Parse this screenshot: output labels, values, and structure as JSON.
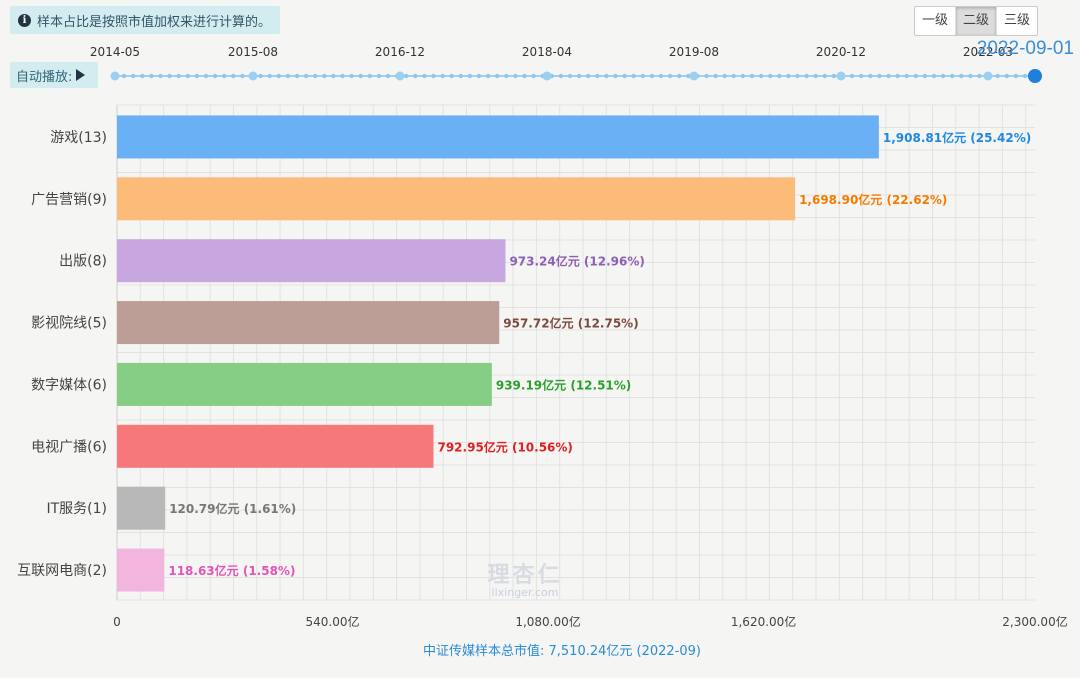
{
  "notice": {
    "icon": "info-icon",
    "text": "样本占比是按照市值加权来进行计算的。"
  },
  "levels": [
    "一级",
    "二级",
    "三级"
  ],
  "active_level": 1,
  "autoplay_label": "自动播放:",
  "timeline": {
    "labels": [
      "2014-05",
      "2015-08",
      "2016-12",
      "2018-04",
      "2019-08",
      "2020-12",
      "2022-03"
    ],
    "current": "2022-09-01"
  },
  "watermark": {
    "cn": "理杏仁",
    "en": "lixinger.com"
  },
  "chart_data": {
    "type": "bar",
    "orientation": "horizontal",
    "categories": [
      "游戏(13)",
      "广告营销(9)",
      "出版(8)",
      "影视院线(5)",
      "数字媒体(6)",
      "电视广播(6)",
      "IT服务(1)",
      "互联网电商(2)"
    ],
    "values": [
      1908.81,
      1698.9,
      973.24,
      957.72,
      939.19,
      792.95,
      120.79,
      118.63
    ],
    "labels": [
      "1,908.81亿元 (25.42%)",
      "1,698.90亿元 (22.62%)",
      "973.24亿元 (12.96%)",
      "957.72亿元 (12.75%)",
      "939.19亿元 (12.51%)",
      "792.95亿元 (10.56%)",
      "120.79亿元 (1.61%)",
      "118.63亿元 (1.58%)"
    ],
    "colors": [
      "#6ab0f5",
      "#fdbb7a",
      "#c8a7e0",
      "#bc9e97",
      "#86cd86",
      "#f7787a",
      "#b8b8b8",
      "#f1b5de"
    ],
    "label_colors": [
      "#1e88e5",
      "#f57c00",
      "#8e5fb6",
      "#7d4a3e",
      "#2aa02a",
      "#e02020",
      "#777777",
      "#e255b8"
    ],
    "xlim": [
      0,
      2300
    ],
    "xticks": [
      0,
      540,
      1080,
      1620,
      2300
    ],
    "xtick_labels": [
      "0",
      "540.00亿",
      "1,080.00亿",
      "1,620.00亿",
      "2,300.00亿"
    ],
    "xlabel": "中证传媒样本总市值: 7,510.24亿元 (2022-09)",
    "grid": true
  }
}
